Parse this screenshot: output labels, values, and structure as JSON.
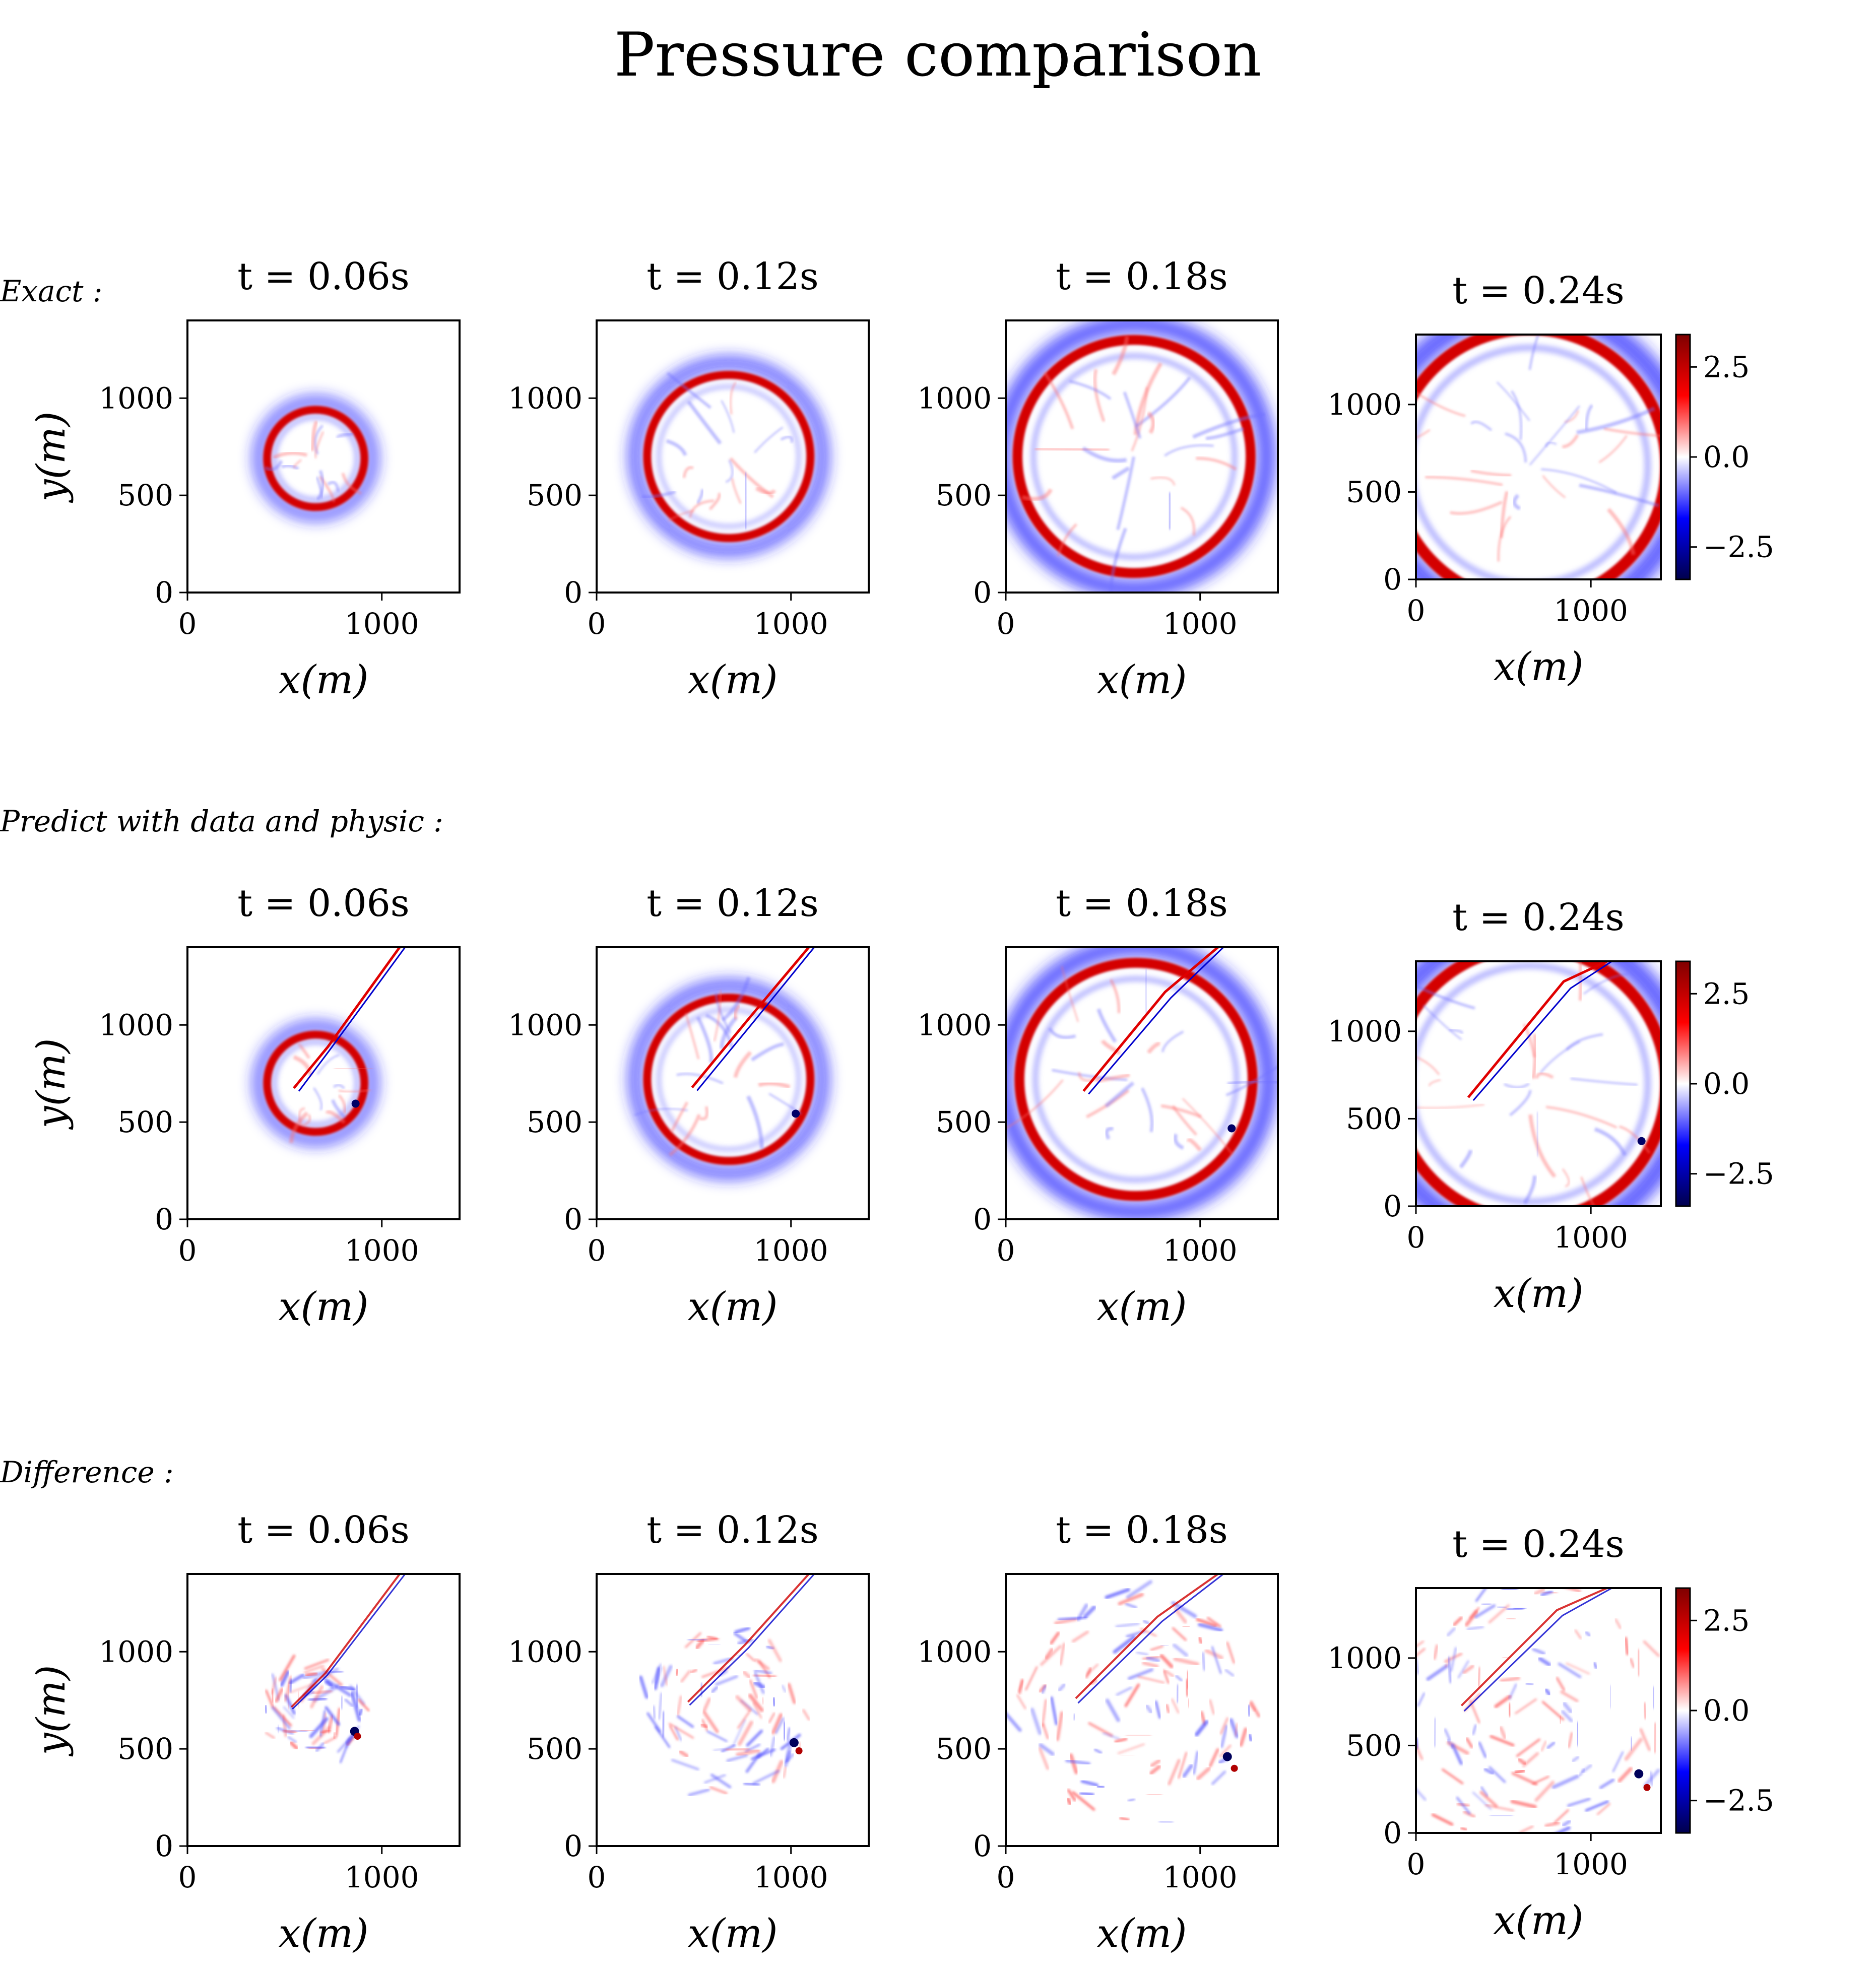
{
  "figure": {
    "title": "Pressure comparison"
  },
  "chart_data": {
    "type": "heatmap",
    "colormap": "seismic",
    "colormap_stops": [
      "#00004c",
      "#0000ff",
      "#ffffff",
      "#ff0000",
      "#7f0000"
    ],
    "clim": [
      -3.4,
      3.4
    ],
    "colorbar_ticks": [
      -2.5,
      0.0,
      2.5
    ],
    "colorbar_tick_labels": [
      "−2.5",
      "0.0",
      "2.5"
    ],
    "xlabel": "x(m)",
    "ylabel": "y(m)",
    "xlim": [
      0,
      1400
    ],
    "ylim": [
      0,
      1400
    ],
    "xticks": [
      0,
      1000
    ],
    "yticks": [
      0,
      500,
      1000
    ],
    "times": [
      "t = 0.06s",
      "t = 0.12s",
      "t = 0.18s",
      "t = 0.24s"
    ],
    "rows": [
      {
        "label": "Exact :",
        "panels": [
          {
            "time": "t = 0.06s",
            "center": [
              660,
              690
            ],
            "radius": 250,
            "pattern": "ring"
          },
          {
            "time": "t = 0.12s",
            "center": [
              680,
              700
            ],
            "radius": 420,
            "pattern": "ring"
          },
          {
            "time": "t = 0.18s",
            "center": [
              660,
              700
            ],
            "radius": 600,
            "pattern": "ring"
          },
          {
            "time": "t = 0.24s",
            "center": [
              650,
              650
            ],
            "radius": 780,
            "pattern": "ring"
          }
        ]
      },
      {
        "label": "Predict with data and physic :",
        "panels": [
          {
            "time": "t = 0.06s",
            "center": [
              660,
              700
            ],
            "radius": 250,
            "pattern": "ring-with-streak"
          },
          {
            "time": "t = 0.12s",
            "center": [
              680,
              720
            ],
            "radius": 420,
            "pattern": "ring-with-streak"
          },
          {
            "time": "t = 0.18s",
            "center": [
              670,
              720
            ],
            "radius": 600,
            "pattern": "ring-with-streak"
          },
          {
            "time": "t = 0.24s",
            "center": [
              650,
              700
            ],
            "radius": 780,
            "pattern": "ring-with-streak"
          }
        ]
      },
      {
        "label": "Difference :",
        "panels": [
          {
            "time": "t = 0.06s",
            "center": [
              660,
              690
            ],
            "radius": 250,
            "pattern": "noise"
          },
          {
            "time": "t = 0.12s",
            "center": [
              680,
              700
            ],
            "radius": 420,
            "pattern": "noise"
          },
          {
            "time": "t = 0.18s",
            "center": [
              660,
              700
            ],
            "radius": 600,
            "pattern": "noise"
          },
          {
            "time": "t = 0.24s",
            "center": [
              650,
              650
            ],
            "radius": 780,
            "pattern": "noise"
          }
        ]
      }
    ]
  }
}
